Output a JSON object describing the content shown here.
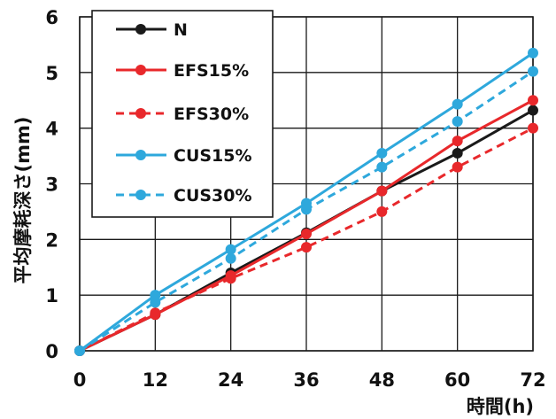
{
  "chart_data": {
    "type": "line",
    "xlabel": "時間(h)",
    "ylabel": "平均摩耗深さ(mm)",
    "x": [
      0,
      12,
      24,
      36,
      48,
      60,
      72
    ],
    "xticks": [
      "0",
      "12",
      "24",
      "36",
      "48",
      "60",
      "72"
    ],
    "yticks": [
      "0",
      "1",
      "2",
      "3",
      "4",
      "5",
      "6"
    ],
    "xlim": [
      0,
      72
    ],
    "ylim": [
      0,
      6
    ],
    "grid": true,
    "legend_position": "top-left",
    "series": [
      {
        "name": "N",
        "color": "#1a1a1a",
        "dash": false,
        "values": [
          0,
          0.65,
          1.4,
          2.12,
          2.87,
          3.55,
          4.32
        ]
      },
      {
        "name": "EFS15%",
        "color": "#e8282b",
        "dash": false,
        "values": [
          0,
          0.65,
          1.35,
          2.1,
          2.87,
          3.77,
          4.5
        ]
      },
      {
        "name": "EFS30%",
        "color": "#e8282b",
        "dash": true,
        "values": [
          0,
          0.68,
          1.3,
          1.86,
          2.5,
          3.3,
          4.0
        ]
      },
      {
        "name": "CUS15%",
        "color": "#2ea8dc",
        "dash": false,
        "values": [
          0,
          1.0,
          1.82,
          2.65,
          3.55,
          4.43,
          5.35
        ]
      },
      {
        "name": "CUS30%",
        "color": "#2ea8dc",
        "dash": true,
        "values": [
          0,
          0.87,
          1.66,
          2.54,
          3.3,
          4.12,
          5.02
        ]
      }
    ]
  }
}
